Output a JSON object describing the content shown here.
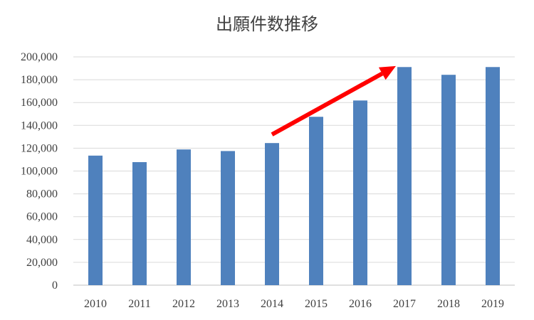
{
  "chart_data": {
    "type": "bar",
    "title": "出願件数推移",
    "xlabel": "",
    "ylabel": "",
    "categories": [
      "2010",
      "2011",
      "2012",
      "2013",
      "2014",
      "2015",
      "2016",
      "2017",
      "2018",
      "2019"
    ],
    "values": [
      113500,
      107800,
      118900,
      117500,
      124500,
      147500,
      161800,
      191100,
      184300,
      191100
    ],
    "ylim": [
      0,
      200000
    ],
    "yticks": [
      "0",
      "20,000",
      "40,000",
      "60,000",
      "80,000",
      "100,000",
      "120,000",
      "140,000",
      "160,000",
      "180,000",
      "200,000"
    ],
    "grid": true,
    "legend": "none",
    "bar_color": "#4f81bd",
    "annotations": [
      {
        "type": "arrow",
        "color": "#ff0000",
        "from": {
          "x": "2014",
          "y": 132000
        },
        "to": {
          "x": "2017",
          "y": 192000
        }
      }
    ]
  }
}
